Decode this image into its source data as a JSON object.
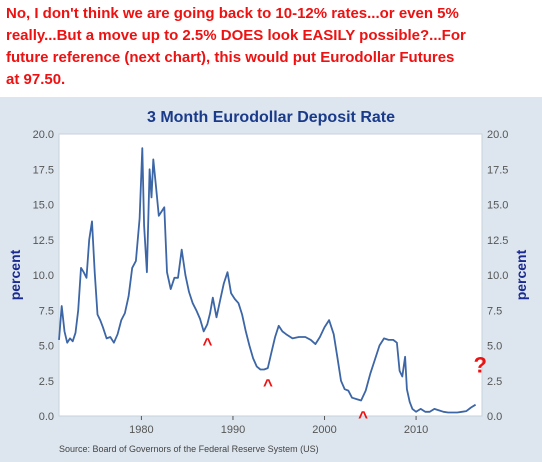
{
  "commentary": {
    "color": "#ee1111",
    "lines": [
      "No, I don't think we are going back to 10-12% rates...or even 5%",
      "really...But a move up to 2.5% DOES look EASILY possible?...For",
      "future reference (next chart), this would put Eurodollar Futures",
      "at 97.50."
    ]
  },
  "colors": {
    "title": "#1a3a8a",
    "axis_label": "#1a2a90",
    "line": "#3d66a6",
    "panel_bg": "#dde6ee",
    "plot_bg": "#ffffff",
    "grid": "#e4e8ee",
    "marker": "#ee1111",
    "tick": "#555555"
  },
  "chart_data": {
    "type": "line",
    "title": "3 Month Eurodollar Deposit Rate",
    "ylabel_left": "percent",
    "ylabel_right": "percent",
    "xlabel": "",
    "xlim": [
      1971,
      2017.2
    ],
    "ylim": [
      0,
      20
    ],
    "x_ticks": [
      1980,
      1990,
      2000,
      2010
    ],
    "y_ticks": [
      "0.0",
      "2.5",
      "5.0",
      "7.5",
      "10.0",
      "12.5",
      "15.0",
      "17.5",
      "20.0"
    ],
    "grid": false,
    "source": "Source: Board of Governors of the Federal Reserve System (US)",
    "series": [
      {
        "x": [
          1971.0,
          1971.3,
          1971.6,
          1971.9,
          1972.2,
          1972.5,
          1972.8,
          1973.1,
          1973.4,
          1973.7,
          1974.0,
          1974.3,
          1974.6,
          1974.9,
          1975.2,
          1975.5,
          1975.8,
          1976.2,
          1976.6,
          1977.0,
          1977.4,
          1977.8,
          1978.2,
          1978.6,
          1979.0,
          1979.4,
          1979.8,
          1980.1,
          1980.3,
          1980.6,
          1980.9,
          1981.1,
          1981.3,
          1981.6,
          1981.9,
          1982.2,
          1982.5,
          1982.8,
          1983.2,
          1983.6,
          1984.0,
          1984.4,
          1984.8,
          1985.2,
          1985.6,
          1986.0,
          1986.4,
          1986.8,
          1987.2,
          1987.5,
          1987.8,
          1988.2,
          1988.6,
          1989.0,
          1989.4,
          1989.8,
          1990.2,
          1990.6,
          1991.0,
          1991.4,
          1991.8,
          1992.2,
          1992.6,
          1993.0,
          1993.4,
          1993.8,
          1994.2,
          1994.6,
          1995.0,
          1995.4,
          1995.8,
          1996.5,
          1997.2,
          1997.9,
          1998.5,
          1999.0,
          1999.5,
          2000.0,
          2000.5,
          2001.0,
          2001.4,
          2001.8,
          2002.2,
          2002.6,
          2003.0,
          2003.5,
          2004.0,
          2004.5,
          2005.0,
          2005.5,
          2006.0,
          2006.5,
          2007.0,
          2007.5,
          2007.9,
          2008.2,
          2008.5,
          2008.8,
          2009.0,
          2009.3,
          2009.6,
          2010.0,
          2010.5,
          2011.0,
          2011.5,
          2012.0,
          2012.5,
          2013.0,
          2013.5,
          2014.0,
          2014.5,
          2015.0,
          2015.5,
          2016.0,
          2016.5
        ],
        "y": [
          5.4,
          7.8,
          6.0,
          5.2,
          5.5,
          5.3,
          5.9,
          7.5,
          10.5,
          10.2,
          9.8,
          12.5,
          13.8,
          10.2,
          7.2,
          6.8,
          6.3,
          5.5,
          5.6,
          5.2,
          5.8,
          6.8,
          7.3,
          8.5,
          10.5,
          11.0,
          14.0,
          19.0,
          13.5,
          10.2,
          17.5,
          15.5,
          18.2,
          16.2,
          14.2,
          14.5,
          14.8,
          10.2,
          9.0,
          9.8,
          9.8,
          11.8,
          10.0,
          8.8,
          8.0,
          7.5,
          6.9,
          6.0,
          6.5,
          7.3,
          8.4,
          7.0,
          8.2,
          9.4,
          10.2,
          8.7,
          8.3,
          8.0,
          7.2,
          6.0,
          5.0,
          4.1,
          3.5,
          3.3,
          3.3,
          3.4,
          4.5,
          5.6,
          6.4,
          6.0,
          5.8,
          5.5,
          5.6,
          5.6,
          5.4,
          5.1,
          5.6,
          6.3,
          6.8,
          5.8,
          4.2,
          2.5,
          1.9,
          1.8,
          1.3,
          1.2,
          1.1,
          1.8,
          3.0,
          4.0,
          5.0,
          5.5,
          5.4,
          5.4,
          5.2,
          3.2,
          2.8,
          4.2,
          1.9,
          1.0,
          0.5,
          0.3,
          0.5,
          0.3,
          0.3,
          0.5,
          0.4,
          0.3,
          0.25,
          0.25,
          0.25,
          0.3,
          0.35,
          0.6,
          0.8
        ]
      }
    ],
    "annotations": [
      {
        "text": "^",
        "x": 1987.0,
        "y": 6.0
      },
      {
        "text": "^",
        "x": 1993.6,
        "y": 3.1
      },
      {
        "text": "^",
        "x": 2004.0,
        "y": 0.8
      },
      {
        "text": "?",
        "x": 2017.0,
        "y": 3.1
      }
    ]
  }
}
